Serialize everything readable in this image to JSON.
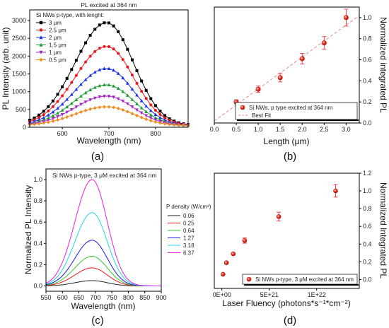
{
  "chart_data": [
    {
      "id": "a",
      "panel_label": "(a)",
      "type": "line",
      "title": "PL excited at 364 nm",
      "xlabel": "Wavelength (nm)",
      "ylabel": "PL Intensity (arb. unit)",
      "xlim": [
        530,
        870
      ],
      "ylim": [
        0,
        3300
      ],
      "x_ticks": [
        600,
        700,
        800
      ],
      "y_ticks": [
        0,
        500,
        1000,
        1500,
        2000,
        2500,
        3000
      ],
      "legend_title": "Si NWs p-type, with lenght:",
      "legend_position": "top-left",
      "peak_wavelength": 695,
      "series": [
        {
          "name": "3 μm",
          "peak": 2900,
          "marker": "square",
          "color": "#000000"
        },
        {
          "name": "2.5 μm",
          "peak": 2230,
          "marker": "circle",
          "color": "#e8171d"
        },
        {
          "name": "2 μm",
          "peak": 1610,
          "marker": "triangle-up",
          "color": "#1a33e6"
        },
        {
          "name": "1.5 μm",
          "peak": 1150,
          "marker": "triangle-up",
          "color": "#1e9c33"
        },
        {
          "name": "1 μm",
          "peak": 830,
          "marker": "triangle-down",
          "color": "#a62ac6"
        },
        {
          "name": "0.5 μm",
          "peak": 530,
          "marker": "diamond",
          "color": "#f28a1c"
        }
      ]
    },
    {
      "id": "b",
      "panel_label": "(b)",
      "type": "scatter",
      "xlabel": "Length (μm)",
      "ylabel": "Normalized integrated PL",
      "xlim": [
        0,
        3.3
      ],
      "ylim": [
        0,
        1.1
      ],
      "x_ticks": [
        "0.0",
        "0.5",
        "1.0",
        "1.5",
        "2.0",
        "2.5",
        "3.0"
      ],
      "y_ticks": [
        "0.0",
        "0.2",
        "0.4",
        "0.6",
        "0.8",
        "1.0"
      ],
      "series": [
        {
          "name": "Si NWs, p type excited at 364 nm",
          "x": [
            0.5,
            1.0,
            1.5,
            2.0,
            2.5,
            3.0
          ],
          "y": [
            0.2,
            0.32,
            0.43,
            0.61,
            0.76,
            1.0
          ],
          "err": [
            0.02,
            0.03,
            0.04,
            0.05,
            0.06,
            0.08
          ],
          "color": "#e8171d"
        },
        {
          "name": "Best Fit",
          "fit_x": [
            0,
            3.3
          ],
          "fit_y": [
            0.02,
            1.02
          ],
          "style": "dashed",
          "color": "#e88a8a"
        }
      ],
      "legend_position": "bottom-right"
    },
    {
      "id": "c",
      "panel_label": "(c)",
      "type": "line",
      "title": "Si NWs p-type, 3 μM excited at 364 nm",
      "xlabel": "Wavelength (nm)",
      "ylabel": "Normalized PL Intensity",
      "xlim": [
        550,
        900
      ],
      "ylim": [
        -0.05,
        1.1
      ],
      "x_ticks": [
        550,
        600,
        650,
        700,
        750,
        800,
        850,
        900
      ],
      "y_ticks": [
        "0.0",
        "0.2",
        "0.4",
        "0.6",
        "0.8",
        "1.0"
      ],
      "legend_title": "P density (W/cm²)",
      "legend_position": "right",
      "peak_wavelength": 690,
      "series": [
        {
          "name": "0.06",
          "peak": 0.05,
          "color": "#222222"
        },
        {
          "name": "0.25",
          "peak": 0.17,
          "color": "#e8171d"
        },
        {
          "name": "0.64",
          "peak": 0.28,
          "color": "#33cc33"
        },
        {
          "name": "1.27",
          "peak": 0.43,
          "color": "#1a1ae6"
        },
        {
          "name": "3.18",
          "peak": 0.69,
          "color": "#22d6e0"
        },
        {
          "name": "6.37",
          "peak": 1.0,
          "color": "#e620e6"
        }
      ]
    },
    {
      "id": "d",
      "panel_label": "(d)",
      "type": "scatter",
      "xlabel": "Laser Fluency (photons*s⁻¹*cm⁻²)",
      "ylabel": "Normalized Integrated PL",
      "xlim": [
        -8e+20,
        1.45e+22
      ],
      "ylim": [
        -0.1,
        1.2
      ],
      "x_ticks": [
        "0E+00",
        "5E+21",
        "1E+22"
      ],
      "y_ticks": [
        "0.0",
        "0.2",
        "0.4",
        "0.6",
        "0.8",
        "1.0",
        "1.2"
      ],
      "series": [
        {
          "name": "Si NWs p-type, 3 μM excited at 364 nm",
          "x": [
            1.2e+20,
            4.8e+20,
            1.2e+21,
            2.4e+21,
            6e+21,
            1.2e+22
          ],
          "y": [
            0.06,
            0.19,
            0.29,
            0.44,
            0.71,
            1.0
          ],
          "err": [
            0.0,
            0.0,
            0.0,
            0.03,
            0.05,
            0.07
          ],
          "color": "#e8171d"
        }
      ],
      "legend_position": "bottom-right"
    }
  ]
}
